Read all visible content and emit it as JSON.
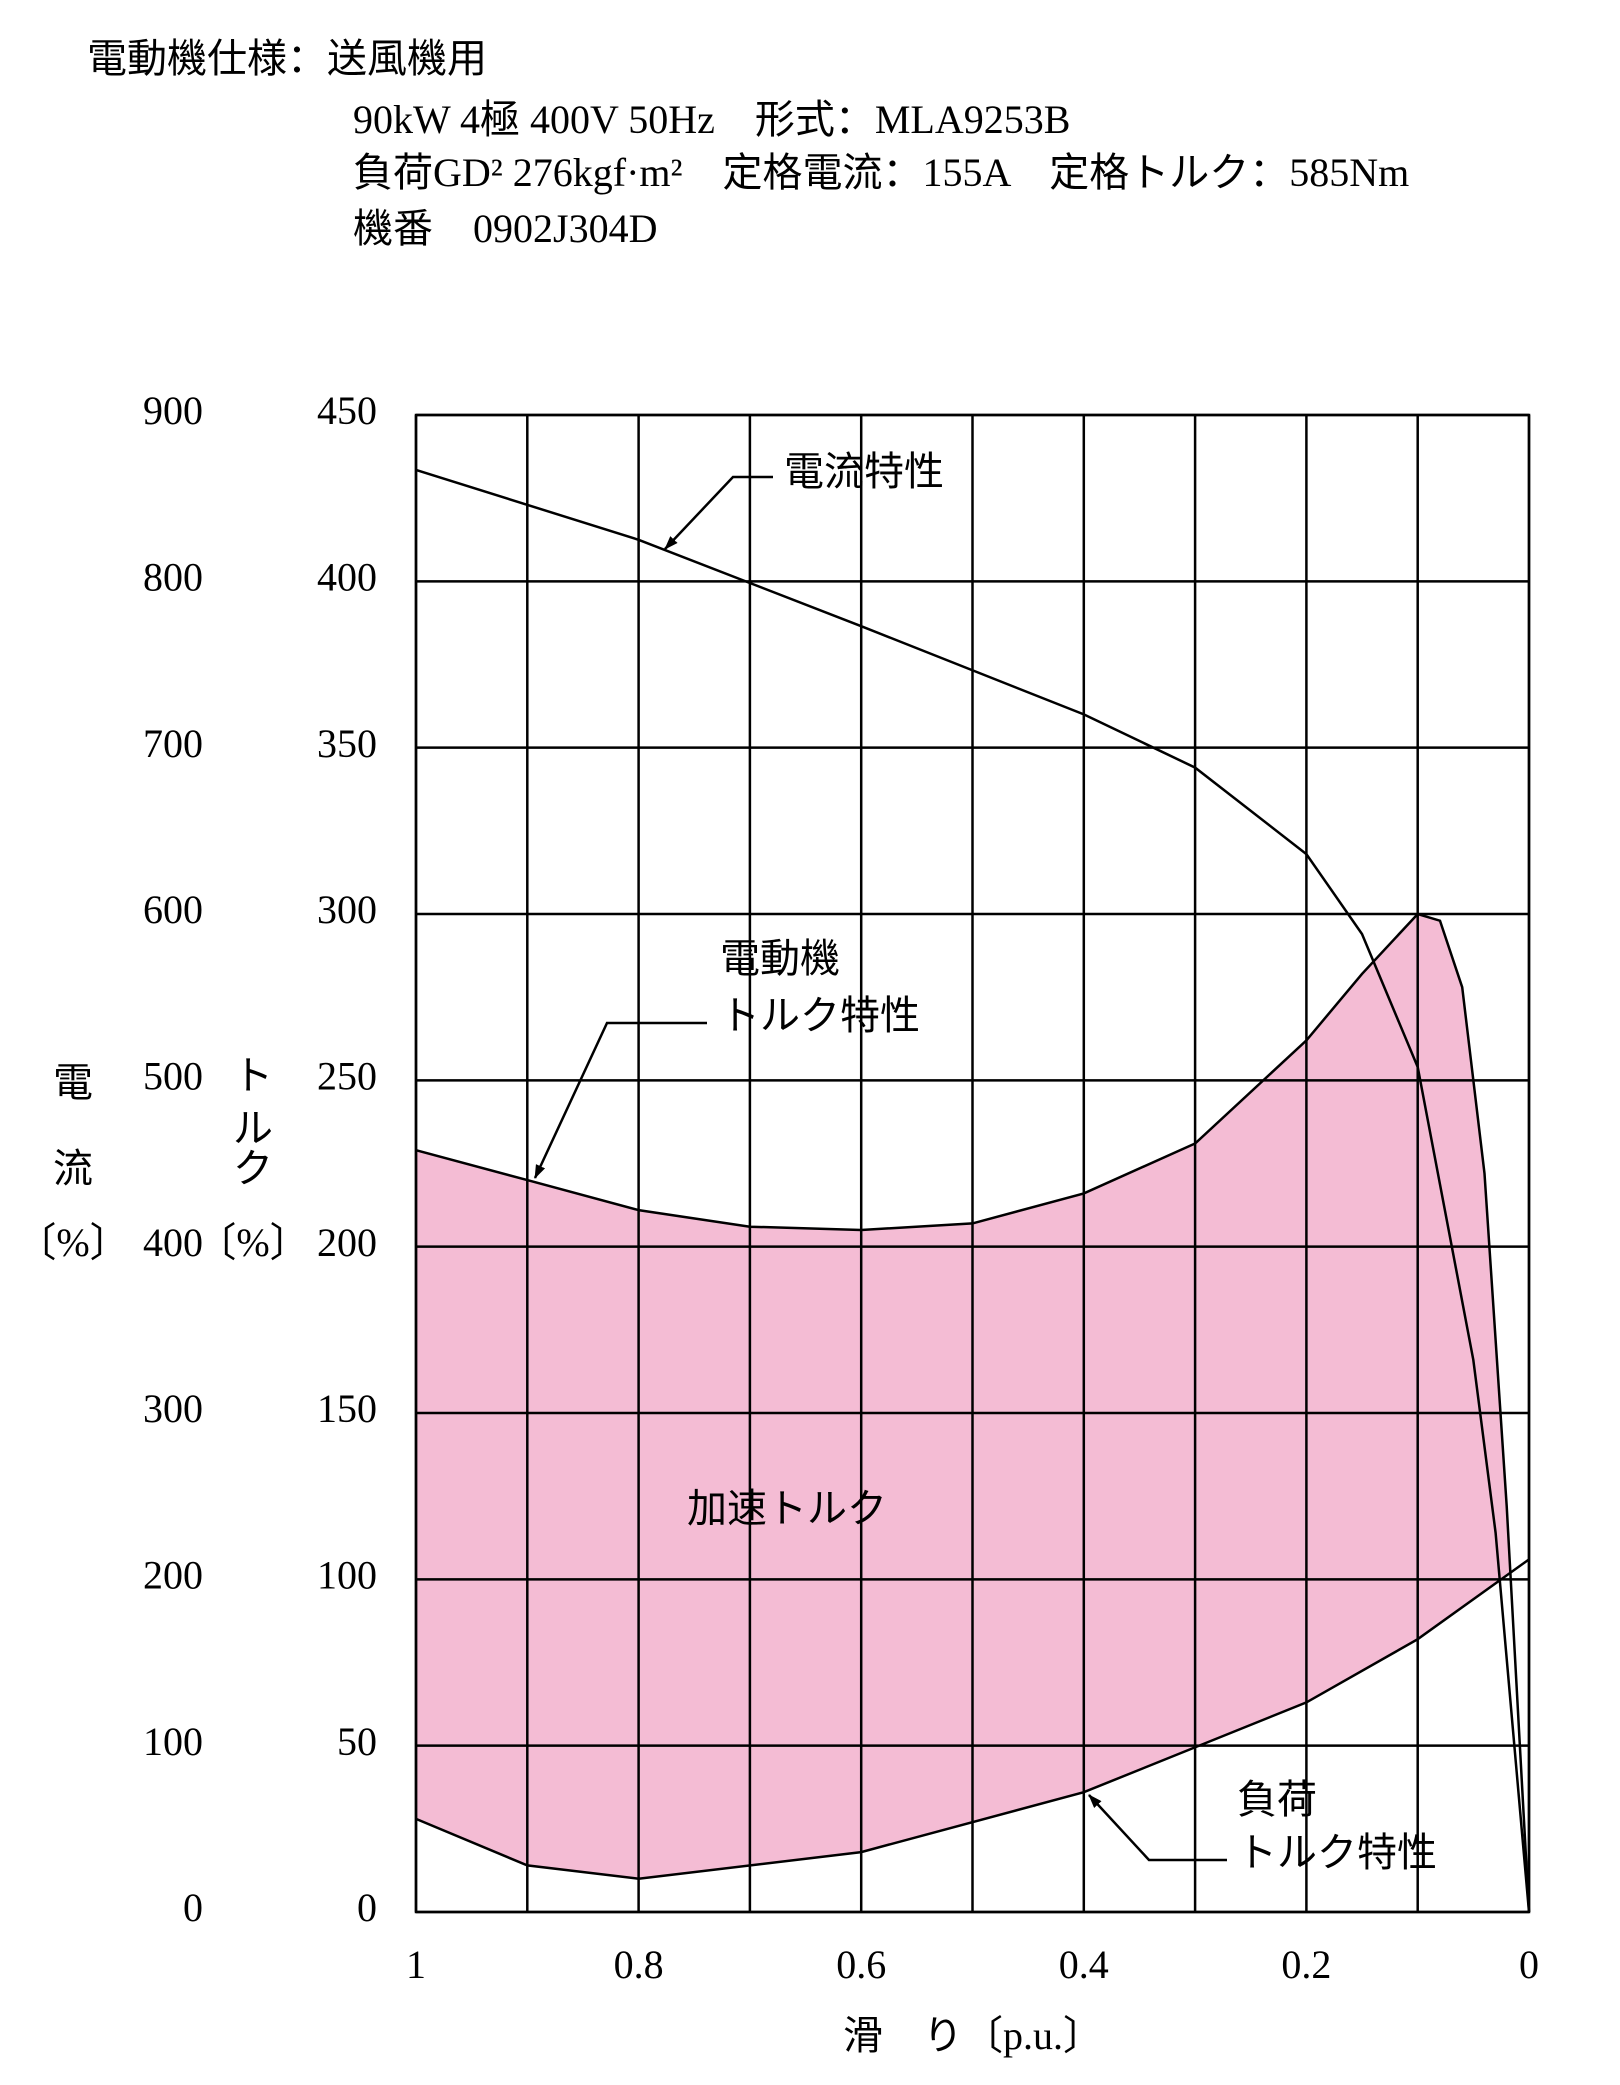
{
  "header": [
    "電動機仕様：送風機用",
    "90kW  4極  400V  50Hz　形式：MLA9253B",
    "負荷GD²  276kgf·m²　定格電流：155A　定格トルク：585Nm",
    "機番　0902J304D"
  ],
  "chart_data": {
    "type": "line",
    "xlabel": "滑　り〔p.u.〕",
    "y_label_lines": [
      "ト",
      "ル",
      "ク",
      "〔%〕"
    ],
    "y2_label_lines": [
      "電",
      "流",
      "〔%〕"
    ],
    "xlim": [
      1,
      0
    ],
    "xticks": [
      1,
      0.8,
      0.6,
      0.4,
      0.2,
      0
    ],
    "xminor_grid": [
      0.9,
      0.7,
      0.5,
      0.3,
      0.1
    ],
    "ylim": [
      0,
      450
    ],
    "yticks": [
      0,
      50,
      100,
      150,
      200,
      250,
      300,
      350,
      400,
      450
    ],
    "y2lim": [
      0,
      900
    ],
    "y2ticks": [
      0,
      100,
      200,
      300,
      400,
      500,
      600,
      700,
      800,
      900
    ],
    "grid": true,
    "fill_color": "#f4bcd4",
    "fill_label": "加速トルク",
    "series": [
      {
        "label_lines": [
          "電流特性"
        ],
        "color": "#000000",
        "axis": "y2",
        "x": [
          1,
          0.8,
          0.6,
          0.4,
          0.3,
          0.2,
          0.15,
          0.1,
          0.05,
          0.03,
          0
        ],
        "values": [
          867,
          825,
          773,
          720,
          688,
          636,
          588,
          508,
          332,
          228,
          0
        ]
      },
      {
        "label_lines": [
          "電動機",
          "トルク特性"
        ],
        "color": "#000000",
        "x": [
          1,
          0.9,
          0.8,
          0.7,
          0.6,
          0.5,
          0.4,
          0.3,
          0.2,
          0.15,
          0.1,
          0.08,
          0.06,
          0.04,
          0.02,
          0
        ],
        "values": [
          229,
          220,
          211,
          206,
          205,
          207,
          216,
          231,
          262,
          282,
          300,
          298,
          278,
          222,
          122,
          0
        ]
      },
      {
        "label_lines": [
          "負荷",
          "トルク特性"
        ],
        "color": "#000000",
        "x": [
          1,
          0.9,
          0.8,
          0.6,
          0.4,
          0.2,
          0.1,
          0
        ],
        "values": [
          28,
          14,
          10,
          18,
          36,
          63,
          82,
          106
        ]
      }
    ]
  }
}
